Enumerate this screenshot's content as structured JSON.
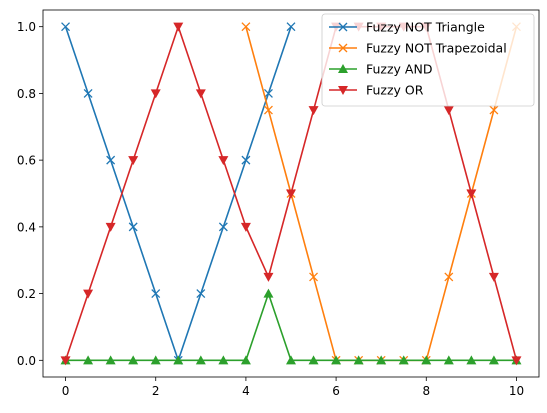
{
  "chart_data": {
    "type": "line",
    "title": "",
    "xlabel": "",
    "ylabel": "",
    "xlim": [
      -0.5,
      10.5
    ],
    "ylim": [
      -0.05,
      1.05
    ],
    "xticks": [
      "0",
      "2",
      "4",
      "6",
      "8",
      "10"
    ],
    "yticks": [
      "0.0",
      "0.2",
      "0.4",
      "0.6",
      "0.8",
      "1.0"
    ],
    "grid": false,
    "legend": {
      "placement": "top-right"
    },
    "series": [
      {
        "name": "Fuzzy NOT Triangle",
        "color": "#1f77b4",
        "marker": "x",
        "x": [
          0,
          0.5,
          1,
          1.5,
          2,
          2.5,
          3,
          3.5,
          4,
          4.5,
          5
        ],
        "y": [
          1.0,
          0.8,
          0.6,
          0.4,
          0.2,
          0.0,
          0.2,
          0.4,
          0.6,
          0.8,
          1.0
        ]
      },
      {
        "name": "Fuzzy NOT Trapezoidal",
        "color": "#ff7f0e",
        "marker": "x",
        "x": [
          4,
          4.5,
          5,
          5.5,
          6,
          6.5,
          7,
          7.5,
          8,
          8.5,
          9,
          9.5,
          10
        ],
        "y": [
          1.0,
          0.75,
          0.5,
          0.25,
          0.0,
          0.0,
          0.0,
          0.0,
          0.0,
          0.25,
          0.5,
          0.75,
          1.0
        ]
      },
      {
        "name": "Fuzzy AND",
        "color": "#2ca02c",
        "marker": "triangle-up",
        "x": [
          0,
          0.5,
          1,
          1.5,
          2,
          2.5,
          3,
          3.5,
          4,
          4.5,
          5,
          5.5,
          6,
          6.5,
          7,
          7.5,
          8,
          8.5,
          9,
          9.5,
          10
        ],
        "y": [
          0,
          0,
          0,
          0,
          0,
          0,
          0,
          0,
          0,
          0.2,
          0,
          0,
          0,
          0,
          0,
          0,
          0,
          0,
          0,
          0,
          0
        ]
      },
      {
        "name": "Fuzzy OR",
        "color": "#d62728",
        "marker": "triangle-down",
        "x": [
          0,
          0.5,
          1,
          1.5,
          2,
          2.5,
          3,
          3.5,
          4,
          4.5,
          5,
          5.5,
          6,
          6.5,
          7,
          7.5,
          8,
          8.5,
          9,
          9.5,
          10
        ],
        "y": [
          0,
          0.2,
          0.4,
          0.6,
          0.8,
          1.0,
          0.8,
          0.6,
          0.4,
          0.25,
          0.5,
          0.75,
          1.0,
          1.0,
          1.0,
          1.0,
          1.0,
          0.75,
          0.5,
          0.25,
          0
        ]
      }
    ]
  }
}
